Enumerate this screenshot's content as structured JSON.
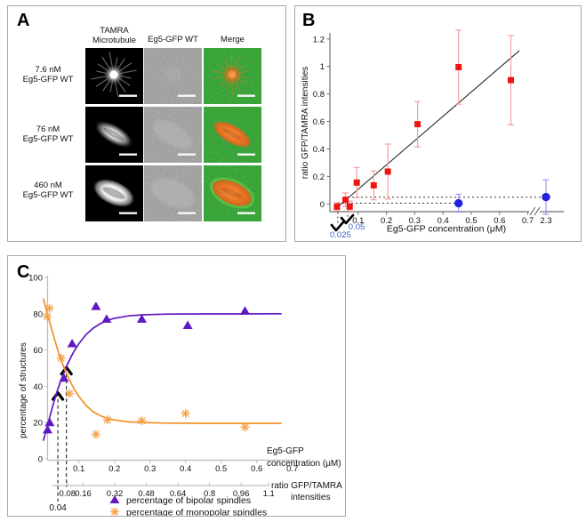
{
  "panelA": {
    "label": "A",
    "column_headers": [
      {
        "line1": "TAMRA",
        "line2": "Microtubule"
      },
      {
        "line1": "Eg5-GFP WT",
        "line2": ""
      },
      {
        "line1": "Merge",
        "line2": ""
      }
    ],
    "row_labels": [
      {
        "line1": "7.6 nM",
        "line2": "Eg5-GFP WT"
      },
      {
        "line1": "76 nM",
        "line2": "Eg5-GFP WT"
      },
      {
        "line1": "460 nM",
        "line2": "Eg5-GFP WT"
      }
    ],
    "cell_types": [
      [
        "aster-bright",
        "noise-empty",
        "aster-merge"
      ],
      [
        "spindle-bright",
        "spindle-faint",
        "spindle-merge"
      ],
      [
        "ellipse-bright",
        "ellipse-faint",
        "ellipse-merge"
      ]
    ]
  },
  "panelB": {
    "label": "B"
  },
  "panelC": {
    "label": "C"
  },
  "colors": {
    "red": "#ee1511",
    "red_err": "#f7a0a0",
    "blue": "#2222dd",
    "blue_err": "#9a9af0",
    "blue_label": "#3f5fd0",
    "purple": "#6018c0",
    "orange": "#f49024",
    "orange_marker": "#f7a24a",
    "axis_dark": "#6e6e6e",
    "axis_light": "#bdbdbd",
    "text": "#111111",
    "green_bg": "#1e8a1e",
    "gray_bg": "#8c8c8c",
    "fit_line": "#2a2a2a"
  },
  "chart_data": [
    {
      "panel": "B",
      "type": "scatter",
      "xlabel": "Eg5-GFP concentration (μM)",
      "ylabel": "ratio GFP/TAMRA intensities",
      "x_ticks": [
        0.1,
        0.2,
        0.3,
        0.4,
        0.5,
        0.6,
        0.7
      ],
      "x_break_tick": 2.3,
      "y_ticks": [
        0,
        0.2,
        0.4,
        0.6,
        0.8,
        1,
        1.2
      ],
      "xlim": [
        0,
        0.75
      ],
      "ylim": [
        -0.12,
        1.3
      ],
      "grid": false,
      "series": [
        {
          "name": "red squares",
          "marker": "square",
          "color": "#ee1511",
          "error_color": "#f7a0a0",
          "points": [
            [
              0.025,
              -0.02,
              0.03
            ],
            [
              0.055,
              0.03,
              0.05
            ],
            [
              0.07,
              -0.02,
              0.04
            ],
            [
              0.095,
              0.155,
              0.11
            ],
            [
              0.155,
              0.135,
              0.105
            ],
            [
              0.205,
              0.235,
              0.2
            ],
            [
              0.31,
              0.58,
              0.165
            ],
            [
              0.455,
              0.995,
              0.27
            ],
            [
              0.64,
              0.9,
              0.325
            ]
          ]
        },
        {
          "name": "blue circles",
          "marker": "circle",
          "color": "#2222dd",
          "error_color": "#9a9af0",
          "points": [
            [
              0.455,
              0.005,
              0.065
            ],
            [
              2.3,
              0.05,
              0.125
            ]
          ]
        }
      ],
      "fit_line": {
        "x1": 0.02,
        "y1": -0.035,
        "x2": 0.67,
        "y2": 1.115
      },
      "dotted_guides": {
        "horizontal": [
          {
            "y": 0.049,
            "x_from": 0.063,
            "x_to": 2.3
          },
          {
            "y": 0.005,
            "x_from": 0.028,
            "x_to": 0.455
          }
        ],
        "vertical": [
          {
            "x": 0.028,
            "y_from": 0.005,
            "arrow_label": "0.025"
          },
          {
            "x": 0.063,
            "y_from": 0.049,
            "arrow_label": "0.05"
          }
        ]
      },
      "annotation_label_color": "#3f5fd0"
    },
    {
      "panel": "C",
      "type": "scatter-with-fit",
      "ylabel": "percentage of structures",
      "xlabel_lines": [
        "Eg5-GFP",
        "concentration (μM)"
      ],
      "x2label_lines": [
        "ratio GFP/TAMRA",
        "intensities"
      ],
      "x_ticks": [
        0.1,
        0.2,
        0.3,
        0.4,
        0.5,
        0.6,
        0.7
      ],
      "y_ticks": [
        0,
        20,
        40,
        60,
        80,
        100
      ],
      "x2_ticks": [
        0.08,
        0.16,
        0.32,
        0.48,
        0.64,
        0.8,
        0.96,
        1.1
      ],
      "ylim": [
        0,
        100
      ],
      "grid": false,
      "series": [
        {
          "name": "percentage of bipolar spindles",
          "marker": "triangle",
          "color": "#6018c0",
          "marker_color": "#6018c0",
          "points": [
            [
              0.012,
              16
            ],
            [
              0.018,
              20
            ],
            [
              0.058,
              44.5
            ],
            [
              0.081,
              63.5
            ],
            [
              0.148,
              84
            ],
            [
              0.178,
              77
            ],
            [
              0.277,
              77
            ],
            [
              0.406,
              73.5
            ],
            [
              0.567,
              81.5
            ]
          ],
          "fit_curve": [
            [
              0,
              10
            ],
            [
              0.01,
              17
            ],
            [
              0.02,
              24.5
            ],
            [
              0.03,
              31.5
            ],
            [
              0.04,
              38
            ],
            [
              0.05,
              43.5
            ],
            [
              0.06,
              48.5
            ],
            [
              0.07,
              53
            ],
            [
              0.08,
              57
            ],
            [
              0.09,
              60.5
            ],
            [
              0.1,
              63.5
            ],
            [
              0.12,
              68.5
            ],
            [
              0.14,
              72
            ],
            [
              0.16,
              74.5
            ],
            [
              0.18,
              76.3
            ],
            [
              0.2,
              77.5
            ],
            [
              0.24,
              78.8
            ],
            [
              0.28,
              79.4
            ],
            [
              0.35,
              79.8
            ],
            [
              0.45,
              79.9
            ],
            [
              0.55,
              79.9
            ],
            [
              0.67,
              80
            ]
          ]
        },
        {
          "name": "percentage of monopolar spindles",
          "marker": "asterisk",
          "color": "#f49024",
          "marker_color": "#f7a24a",
          "points": [
            [
              0.011,
              78.5
            ],
            [
              0.017,
              83
            ],
            [
              0.05,
              55.5
            ],
            [
              0.073,
              36
            ],
            [
              0.148,
              13.5
            ],
            [
              0.18,
              21.5
            ],
            [
              0.277,
              21
            ],
            [
              0.4,
              25
            ],
            [
              0.567,
              17.5
            ]
          ],
          "fit_curve": [
            [
              0,
              88.5
            ],
            [
              0.01,
              81
            ],
            [
              0.02,
              74
            ],
            [
              0.03,
              67
            ],
            [
              0.04,
              60.5
            ],
            [
              0.05,
              54.5
            ],
            [
              0.06,
              49.5
            ],
            [
              0.07,
              45
            ],
            [
              0.08,
              41
            ],
            [
              0.09,
              37.5
            ],
            [
              0.1,
              34.5
            ],
            [
              0.12,
              29.5
            ],
            [
              0.14,
              26
            ],
            [
              0.16,
              23.8
            ],
            [
              0.18,
              22.3
            ],
            [
              0.2,
              21.4
            ],
            [
              0.24,
              20.4
            ],
            [
              0.28,
              20
            ],
            [
              0.35,
              19.7
            ],
            [
              0.45,
              19.6
            ],
            [
              0.55,
              19.6
            ],
            [
              0.67,
              19.6
            ]
          ]
        }
      ],
      "dashed_guides": [
        {
          "x": 0.041,
          "y_top": 33,
          "below_label": "0.04"
        },
        {
          "x": 0.065,
          "y_top": 47,
          "below_label": ""
        }
      ],
      "arrows": [
        {
          "x": 0.041,
          "y": 34.5,
          "dir": "up"
        },
        {
          "x": 0.065,
          "y": 48.5,
          "dir": "up"
        }
      ],
      "legend": [
        {
          "label": "percentage of bipolar spindles",
          "marker": "triangle"
        },
        {
          "label": "percentage of monopolar spindles",
          "marker": "asterisk"
        }
      ]
    }
  ]
}
